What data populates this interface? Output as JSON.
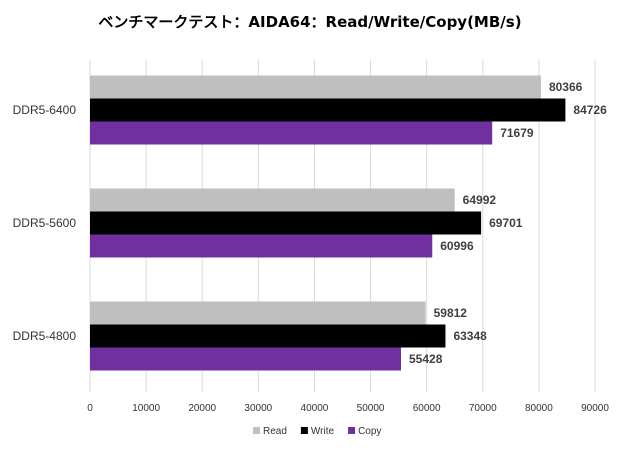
{
  "chart_data": {
    "type": "bar",
    "orientation": "horizontal",
    "title": "ベンチマークテスト：AIDA64：Read/Write/Copy(MB/s)",
    "categories": [
      "DDR5-6400",
      "DDR5-5600",
      "DDR5-4800"
    ],
    "series": [
      {
        "name": "Read",
        "color": "#bfbfbf",
        "values": [
          80366,
          64992,
          59812
        ]
      },
      {
        "name": "Write",
        "color": "#000000",
        "values": [
          84726,
          69701,
          63348
        ]
      },
      {
        "name": "Copy",
        "color": "#7030a0",
        "values": [
          71679,
          60996,
          55428
        ]
      }
    ],
    "xlim": [
      0,
      90000
    ],
    "xticks": [
      0,
      10000,
      20000,
      30000,
      40000,
      50000,
      60000,
      70000,
      80000,
      90000
    ],
    "xlabel": "",
    "ylabel": "",
    "grid": true,
    "legend": "bottom"
  }
}
